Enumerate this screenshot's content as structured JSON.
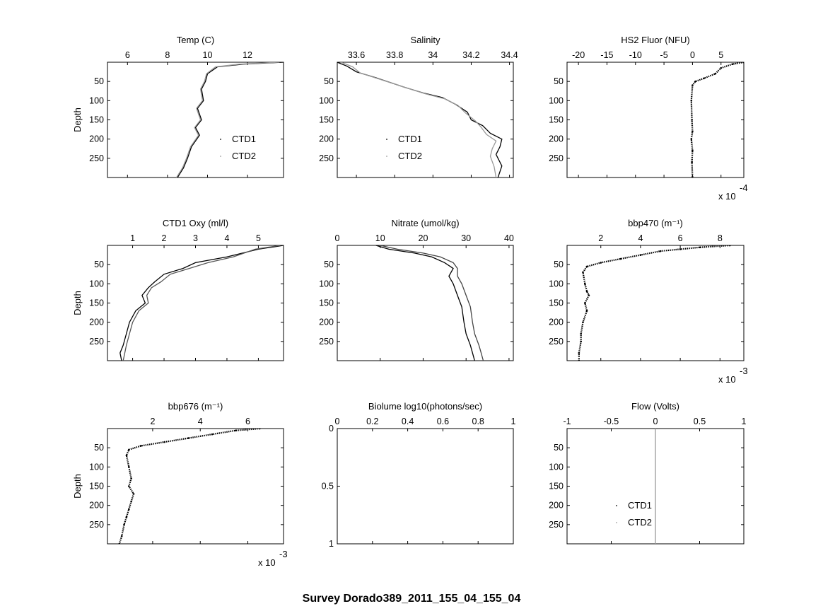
{
  "figure": {
    "suptitle": "Survey Dorado389_2011_155_04_155_04"
  },
  "chart_data": [
    {
      "id": "temp",
      "type": "line",
      "title": "Temp (C)",
      "ylabel": "Depth",
      "xlim": [
        5,
        13.8
      ],
      "ylim": [
        0,
        300
      ],
      "xticks": [
        6,
        8,
        10,
        12
      ],
      "yticks": [
        50,
        100,
        150,
        200,
        250
      ],
      "xexp": "",
      "legend": {
        "entries": [
          "CTD1",
          "CTD2"
        ],
        "placement": "lower-right"
      },
      "series": [
        {
          "name": "CTD1",
          "color": "#000000",
          "x": [
            13.8,
            11.8,
            10.5,
            10.0,
            9.9,
            9.7,
            9.8,
            9.5,
            9.7,
            9.4,
            9.6,
            9.2,
            9.0,
            8.8,
            8.5
          ],
          "y": [
            0,
            5,
            12,
            30,
            50,
            70,
            100,
            120,
            150,
            170,
            190,
            220,
            250,
            275,
            300
          ]
        },
        {
          "name": "CTD2",
          "color": "#999999",
          "x": [
            13.6,
            11.6,
            10.4,
            9.95,
            9.85,
            9.65,
            9.75,
            9.45,
            9.65,
            9.35,
            9.55,
            9.15,
            8.95,
            8.75,
            8.45
          ],
          "y": [
            0,
            5,
            12,
            30,
            50,
            70,
            100,
            120,
            150,
            170,
            190,
            220,
            250,
            275,
            300
          ]
        }
      ]
    },
    {
      "id": "salinity",
      "type": "line",
      "title": "Salinity",
      "ylabel": "",
      "xlim": [
        33.5,
        34.42
      ],
      "ylim": [
        0,
        300
      ],
      "xticks": [
        33.6,
        33.8,
        34,
        34.2,
        34.4
      ],
      "yticks": [
        50,
        100,
        150,
        200,
        250
      ],
      "xexp": "",
      "legend": {
        "entries": [
          "CTD1",
          "CTD2"
        ],
        "placement": "lower-left"
      },
      "series": [
        {
          "name": "CTD1",
          "color": "#000000",
          "x": [
            33.5,
            33.55,
            33.6,
            33.7,
            33.85,
            33.95,
            34.05,
            34.12,
            34.18,
            34.2,
            34.26,
            34.3,
            34.36,
            34.35,
            34.33,
            34.36,
            34.34
          ],
          "y": [
            0,
            10,
            25,
            40,
            65,
            80,
            92,
            110,
            130,
            150,
            165,
            185,
            200,
            220,
            240,
            270,
            300
          ]
        },
        {
          "name": "CTD2",
          "color": "#999999",
          "x": [
            33.52,
            33.58,
            33.62,
            33.72,
            33.87,
            33.96,
            34.06,
            34.13,
            34.17,
            34.22,
            34.25,
            34.28,
            34.33,
            34.31,
            34.3,
            34.32,
            34.33
          ],
          "y": [
            0,
            12,
            28,
            44,
            68,
            82,
            95,
            112,
            132,
            152,
            168,
            188,
            205,
            225,
            245,
            272,
            300
          ]
        }
      ]
    },
    {
      "id": "fluor",
      "type": "scatter",
      "title": "HS2 Fluor (NFU)",
      "ylabel": "",
      "xlim": [
        -22,
        9
      ],
      "ylim": [
        0,
        300
      ],
      "xticks": [
        -20,
        -15,
        -10,
        -5,
        0,
        5
      ],
      "yticks": [
        50,
        100,
        150,
        200,
        250
      ],
      "xexp": "-4",
      "series": [
        {
          "name": "",
          "color": "#000000",
          "x": [
            9,
            7,
            5,
            4,
            2,
            0.5,
            0,
            -0.2,
            -0.1,
            0,
            -0.2,
            0,
            -0.1,
            0
          ],
          "y": [
            0,
            5,
            15,
            30,
            42,
            50,
            60,
            100,
            150,
            180,
            200,
            230,
            260,
            300
          ]
        }
      ]
    },
    {
      "id": "oxy",
      "type": "line",
      "title": "CTD1 Oxy (ml/l)",
      "ylabel": "Depth",
      "xlim": [
        0.2,
        5.8
      ],
      "ylim": [
        0,
        300
      ],
      "xticks": [
        1,
        2,
        3,
        4,
        5
      ],
      "yticks": [
        50,
        100,
        150,
        200,
        250
      ],
      "xexp": "",
      "series": [
        {
          "name": "",
          "color": "#000000",
          "x": [
            5.8,
            5.0,
            4.0,
            3.0,
            2.6,
            2.0,
            1.7,
            1.5,
            1.3,
            1.4,
            1.1,
            0.9,
            0.8,
            0.7,
            0.6,
            0.65
          ],
          "y": [
            0,
            10,
            30,
            45,
            60,
            75,
            95,
            110,
            130,
            150,
            170,
            200,
            230,
            260,
            280,
            300
          ]
        },
        {
          "name": "",
          "color": "#555555",
          "x": [
            5.7,
            4.9,
            4.2,
            3.4,
            2.8,
            2.2,
            1.9,
            1.6,
            1.45,
            1.5,
            1.2,
            1.0,
            0.9,
            0.8,
            0.75,
            0.7
          ],
          "y": [
            0,
            10,
            30,
            45,
            60,
            75,
            95,
            110,
            130,
            150,
            170,
            200,
            230,
            260,
            280,
            300
          ]
        }
      ]
    },
    {
      "id": "nitrate",
      "type": "line",
      "title": "Nitrate (umol/kg)",
      "ylabel": "",
      "xlim": [
        0,
        41
      ],
      "ylim": [
        0,
        300
      ],
      "xticks": [
        0,
        10,
        20,
        30,
        40
      ],
      "yticks": [
        50,
        100,
        150,
        200,
        250
      ],
      "xexp": "",
      "series": [
        {
          "name": "",
          "color": "#000000",
          "x": [
            9,
            12,
            18,
            22,
            25,
            27,
            26,
            27,
            28,
            29,
            29.5,
            30,
            31,
            31.5,
            32
          ],
          "y": [
            0,
            10,
            20,
            30,
            45,
            60,
            80,
            100,
            130,
            160,
            200,
            230,
            260,
            280,
            300
          ]
        },
        {
          "name": "",
          "color": "#444444",
          "x": [
            10,
            14,
            20,
            24,
            27,
            28,
            28,
            29,
            30,
            31,
            31.5,
            32,
            33,
            33.5,
            34
          ],
          "y": [
            0,
            10,
            20,
            30,
            45,
            60,
            80,
            100,
            130,
            160,
            200,
            230,
            260,
            280,
            300
          ]
        }
      ]
    },
    {
      "id": "bbp470",
      "type": "scatter",
      "title": "bbp470 (m⁻¹)",
      "ylabel": "",
      "xlim": [
        0.3,
        9.2
      ],
      "ylim": [
        0,
        300
      ],
      "xticks": [
        2,
        4,
        6,
        8
      ],
      "yticks": [
        50,
        100,
        150,
        200,
        250
      ],
      "xexp": "-3",
      "series": [
        {
          "name": "",
          "color": "#000000",
          "x": [
            8.5,
            7,
            6,
            5,
            4,
            3,
            2,
            1.3,
            1.1,
            1.2,
            1.3,
            1.4,
            1.2,
            1.3,
            1.1,
            1.0,
            1.0,
            0.9,
            0.9
          ],
          "y": [
            0,
            5,
            10,
            15,
            25,
            35,
            45,
            55,
            70,
            100,
            120,
            130,
            150,
            170,
            200,
            230,
            250,
            280,
            300
          ]
        }
      ]
    },
    {
      "id": "bbp676",
      "type": "scatter",
      "title": "bbp676 (m⁻¹)",
      "ylabel": "Depth",
      "xlim": [
        0.1,
        7.5
      ],
      "ylim": [
        0,
        300
      ],
      "xticks": [
        2,
        4,
        6
      ],
      "yticks": [
        50,
        100,
        150,
        200,
        250
      ],
      "xexp": "-3",
      "series": [
        {
          "name": "",
          "color": "#000000",
          "x": [
            6.5,
            5.5,
            4.5,
            3.5,
            2.5,
            1.5,
            1.0,
            0.9,
            1.0,
            1.1,
            1.0,
            1.2,
            1.1,
            1.0,
            0.9,
            0.8,
            0.7,
            0.6
          ],
          "y": [
            0,
            5,
            15,
            25,
            35,
            45,
            55,
            70,
            100,
            130,
            150,
            170,
            190,
            210,
            230,
            250,
            280,
            300
          ]
        }
      ]
    },
    {
      "id": "biolume",
      "type": "line",
      "title": "Biolume log10(photons/sec)",
      "ylabel": "",
      "xlim": [
        0,
        1
      ],
      "ylim": [
        0,
        1
      ],
      "xticks": [
        0,
        0.2,
        0.4,
        0.6,
        0.8,
        1
      ],
      "yticks": [
        0,
        0.5,
        1
      ],
      "xexp": "",
      "series": []
    },
    {
      "id": "flow",
      "type": "line",
      "title": "Flow (Volts)",
      "ylabel": "",
      "xlim": [
        -1,
        1
      ],
      "ylim": [
        0,
        300
      ],
      "xticks": [
        -1,
        -0.5,
        0,
        0.5,
        1
      ],
      "yticks": [
        50,
        100,
        150,
        200,
        250
      ],
      "xexp": "",
      "legend": {
        "entries": [
          "CTD1",
          "CTD2"
        ],
        "placement": "lower-left"
      },
      "series": [
        {
          "name": "CTD2",
          "color": "#999999",
          "x": [
            0,
            0
          ],
          "y": [
            0,
            300
          ]
        }
      ]
    }
  ]
}
